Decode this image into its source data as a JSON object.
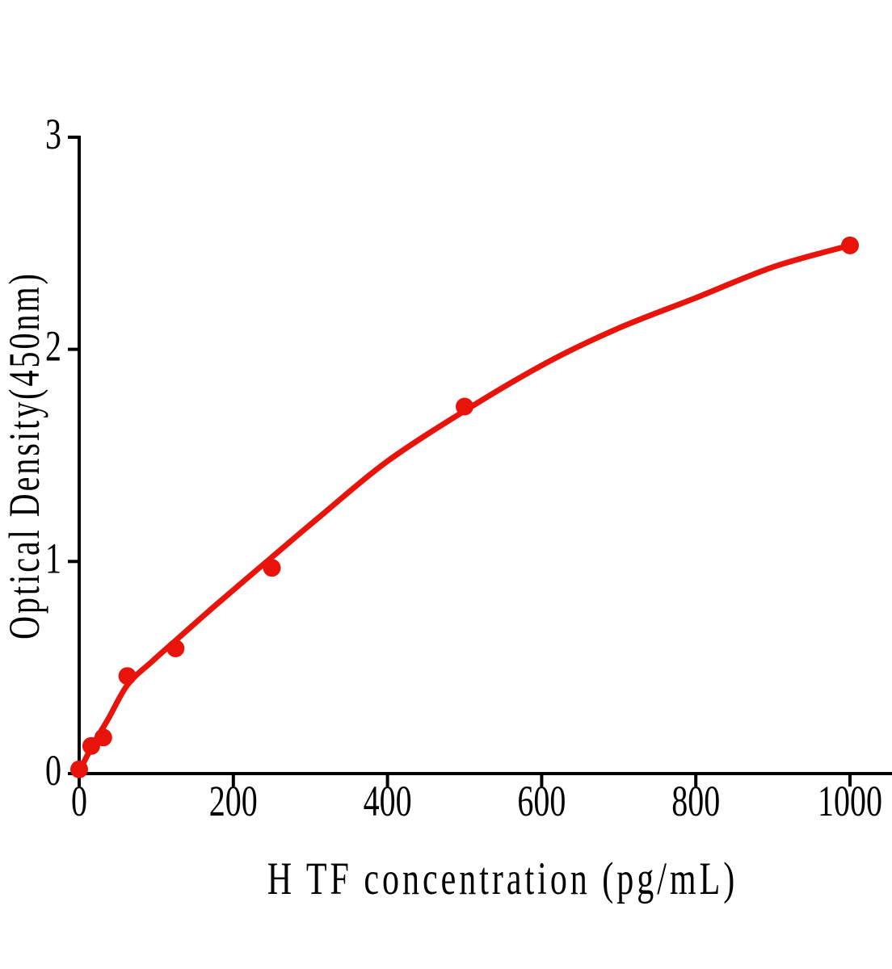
{
  "figure": {
    "background": "#FFFFFF"
  },
  "chart_data": {
    "type": "scatter",
    "title": "",
    "xlabel": "H TF concentration (pg/mL)",
    "ylabel": "Optical Density(450nm)",
    "x_ticks": [
      0,
      200,
      400,
      600,
      800,
      1000
    ],
    "y_ticks": [
      0,
      1,
      2,
      3
    ],
    "xlim": [
      0,
      1055
    ],
    "ylim": [
      0,
      3
    ],
    "grid": false,
    "legend": "none",
    "axis_color": "#000000",
    "series": [
      {
        "name": "standards-scatter",
        "plot": "scatter",
        "color": "#E8140C",
        "marker": "circle",
        "points": [
          [
            0,
            0.02
          ],
          [
            15.6,
            0.13
          ],
          [
            31.25,
            0.17
          ],
          [
            62.5,
            0.46
          ],
          [
            125,
            0.59
          ],
          [
            250,
            0.97
          ],
          [
            500,
            1.73
          ],
          [
            1000,
            2.49
          ]
        ]
      },
      {
        "name": "fit-curve",
        "plot": "line",
        "color": "#E8140C",
        "points": [
          [
            0,
            0.01
          ],
          [
            17,
            0.13
          ],
          [
            38,
            0.26
          ],
          [
            63,
            0.42
          ],
          [
            95,
            0.53
          ],
          [
            126,
            0.63
          ],
          [
            179,
            0.8
          ],
          [
            250,
            1.02
          ],
          [
            315,
            1.22
          ],
          [
            399,
            1.47
          ],
          [
            500,
            1.71
          ],
          [
            608,
            1.94
          ],
          [
            700,
            2.1
          ],
          [
            798,
            2.24
          ],
          [
            902,
            2.39
          ],
          [
            1000,
            2.49
          ]
        ]
      }
    ]
  }
}
